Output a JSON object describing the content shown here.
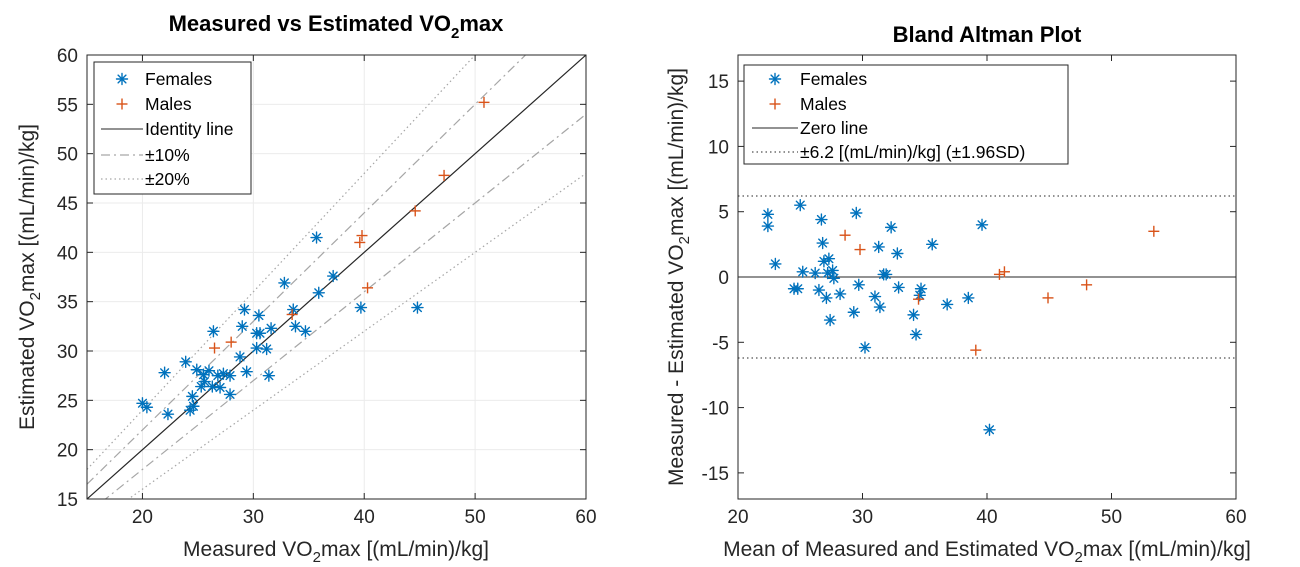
{
  "chart_data": [
    {
      "type": "scatter",
      "title": "Measured vs Estimated VO",
      "title_sub": "2",
      "title_suffix": "max",
      "xlabel": "Measured VO",
      "xlabel_sub": "2",
      "xlabel_suffix": "max [(mL/min)/kg]",
      "ylabel": "Estimated VO",
      "ylabel_sub": "2",
      "ylabel_suffix": "max [(mL/min)/kg]",
      "xlim": [
        15,
        60
      ],
      "ylim": [
        15,
        60
      ],
      "xticks": [
        20,
        30,
        40,
        50,
        60
      ],
      "yticks": [
        15,
        20,
        25,
        30,
        35,
        40,
        45,
        50,
        55,
        60
      ],
      "grid": true,
      "legend_position": "top-left",
      "legend": [
        "Females",
        "Males",
        "Identity line",
        "±10%",
        "±20%"
      ],
      "series": [
        {
          "name": "Females",
          "marker": "asterisk",
          "color": "#0072BD",
          "points": [
            [
              20.0,
              24.7
            ],
            [
              20.4,
              24.3
            ],
            [
              22.0,
              27.8
            ],
            [
              22.3,
              23.6
            ],
            [
              23.9,
              28.9
            ],
            [
              24.3,
              24.0
            ],
            [
              24.5,
              25.4
            ],
            [
              24.6,
              24.4
            ],
            [
              24.9,
              28.1
            ],
            [
              25.3,
              26.4
            ],
            [
              25.5,
              27.6
            ],
            [
              25.6,
              26.9
            ],
            [
              26.0,
              28.0
            ],
            [
              26.3,
              26.4
            ],
            [
              26.4,
              32.0
            ],
            [
              26.8,
              27.5
            ],
            [
              27.0,
              26.3
            ],
            [
              27.3,
              27.7
            ],
            [
              27.9,
              25.6
            ],
            [
              27.9,
              27.5
            ],
            [
              28.8,
              29.4
            ],
            [
              29.0,
              32.5
            ],
            [
              29.2,
              34.2
            ],
            [
              29.4,
              27.9
            ],
            [
              30.3,
              31.8
            ],
            [
              30.3,
              30.3
            ],
            [
              30.5,
              33.6
            ],
            [
              30.6,
              31.8
            ],
            [
              31.2,
              30.2
            ],
            [
              31.4,
              27.5
            ],
            [
              31.6,
              32.3
            ],
            [
              32.8,
              36.9
            ],
            [
              33.6,
              34.2
            ],
            [
              33.8,
              32.5
            ],
            [
              34.7,
              32.0
            ],
            [
              35.7,
              41.5
            ],
            [
              35.9,
              35.9
            ],
            [
              37.2,
              37.6
            ],
            [
              39.7,
              34.4
            ],
            [
              44.8,
              34.4
            ]
          ]
        },
        {
          "name": "Males",
          "marker": "plus",
          "color": "#D95319",
          "points": [
            [
              26.5,
              30.3
            ],
            [
              28.0,
              30.9
            ],
            [
              33.5,
              33.7
            ],
            [
              39.6,
              41.0
            ],
            [
              39.8,
              41.7
            ],
            [
              40.3,
              36.4
            ],
            [
              44.6,
              44.2
            ],
            [
              47.2,
              47.8
            ],
            [
              50.8,
              55.2
            ]
          ]
        }
      ],
      "lines": [
        {
          "name": "Identity line",
          "slope": 1.0,
          "style": "solid",
          "color": "#262626"
        },
        {
          "name": "±10%",
          "slope": 1.1,
          "style": "dashdot",
          "color": "#a6a6a6"
        },
        {
          "name": "±10%",
          "slope": 0.9,
          "style": "dashdot",
          "color": "#a6a6a6"
        },
        {
          "name": "±20%",
          "slope": 1.2,
          "style": "dotted",
          "color": "#a6a6a6"
        },
        {
          "name": "±20%",
          "slope": 0.8,
          "style": "dotted",
          "color": "#a6a6a6"
        }
      ]
    },
    {
      "type": "scatter",
      "title": "Bland Altman Plot",
      "xlabel": "Mean of Measured and Estimated VO",
      "xlabel_sub": "2",
      "xlabel_suffix": "max [(mL/min)/kg]",
      "ylabel": "Measured - Estimated VO",
      "ylabel_sub": "2",
      "ylabel_suffix": "max [(mL/min)/kg]",
      "xlim": [
        20,
        60
      ],
      "ylim": [
        -17,
        17
      ],
      "xticks": [
        20,
        30,
        40,
        50,
        60
      ],
      "yticks": [
        -15,
        -10,
        -5,
        0,
        5,
        10,
        15
      ],
      "grid": false,
      "legend_position": "top-left",
      "legend": [
        "Females",
        "Males",
        "Zero line",
        "±6.2 [(mL/min)/kg] (±1.96SD)"
      ],
      "series": [
        {
          "name": "Females",
          "marker": "asterisk",
          "color": "#0072BD",
          "points": [
            [
              22.4,
              4.8
            ],
            [
              22.4,
              3.9
            ],
            [
              23.0,
              1.0
            ],
            [
              24.5,
              -0.9
            ],
            [
              24.8,
              -0.9
            ],
            [
              25.0,
              5.5
            ],
            [
              25.2,
              0.4
            ],
            [
              26.2,
              0.3
            ],
            [
              26.5,
              -1.0
            ],
            [
              26.7,
              4.4
            ],
            [
              26.8,
              2.6
            ],
            [
              26.9,
              1.2
            ],
            [
              27.1,
              -1.6
            ],
            [
              27.2,
              0.3
            ],
            [
              27.3,
              1.4
            ],
            [
              27.4,
              -3.3
            ],
            [
              27.6,
              0.5
            ],
            [
              27.7,
              -0.1
            ],
            [
              28.2,
              -1.3
            ],
            [
              29.3,
              -2.7
            ],
            [
              29.5,
              4.9
            ],
            [
              29.7,
              -0.6
            ],
            [
              30.2,
              -5.4
            ],
            [
              31.0,
              -1.5
            ],
            [
              31.3,
              2.3
            ],
            [
              31.4,
              -2.3
            ],
            [
              31.7,
              0.2
            ],
            [
              31.9,
              0.2
            ],
            [
              32.3,
              3.8
            ],
            [
              32.8,
              1.8
            ],
            [
              32.9,
              -0.8
            ],
            [
              34.1,
              -2.9
            ],
            [
              34.3,
              -4.4
            ],
            [
              34.6,
              -1.4
            ],
            [
              34.7,
              -0.9
            ],
            [
              35.6,
              2.5
            ],
            [
              36.8,
              -2.1
            ],
            [
              38.5,
              -1.6
            ],
            [
              39.6,
              4.0
            ],
            [
              40.2,
              -11.7
            ]
          ]
        },
        {
          "name": "Males",
          "marker": "plus",
          "color": "#D95319",
          "points": [
            [
              28.6,
              3.2
            ],
            [
              29.8,
              2.1
            ],
            [
              34.5,
              -1.7
            ],
            [
              39.1,
              -5.6
            ],
            [
              41.0,
              0.2
            ],
            [
              41.4,
              0.4
            ],
            [
              44.9,
              -1.6
            ],
            [
              48.0,
              -0.6
            ],
            [
              53.4,
              3.5
            ]
          ]
        }
      ],
      "hlines": [
        {
          "name": "Zero line",
          "y": 0,
          "style": "solid",
          "color": "#262626"
        },
        {
          "name": "±6.2 [(mL/min)/kg] (±1.96SD)",
          "y": 6.2,
          "style": "dotted",
          "color": "#262626"
        },
        {
          "name": "±6.2 [(mL/min)/kg] (±1.96SD)",
          "y": -6.2,
          "style": "dotted",
          "color": "#262626"
        }
      ]
    }
  ]
}
